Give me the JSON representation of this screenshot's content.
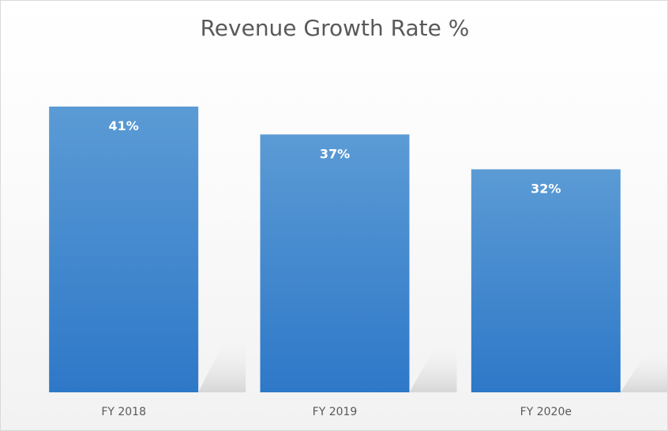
{
  "chart_data": {
    "type": "bar",
    "title": "Revenue Growth Rate %",
    "categories": [
      "FY 2018",
      "FY 2019",
      "FY 2020e"
    ],
    "values": [
      41,
      37,
      32
    ],
    "value_labels": [
      "41%",
      "37%",
      "32%"
    ],
    "xlabel": "",
    "ylabel": "",
    "ylim": [
      0,
      41
    ],
    "grid": false,
    "legend": "none",
    "colors": {
      "bar_top": "#5b9bd5",
      "bar_bottom": "#2e78c8",
      "text": "#595959"
    }
  }
}
